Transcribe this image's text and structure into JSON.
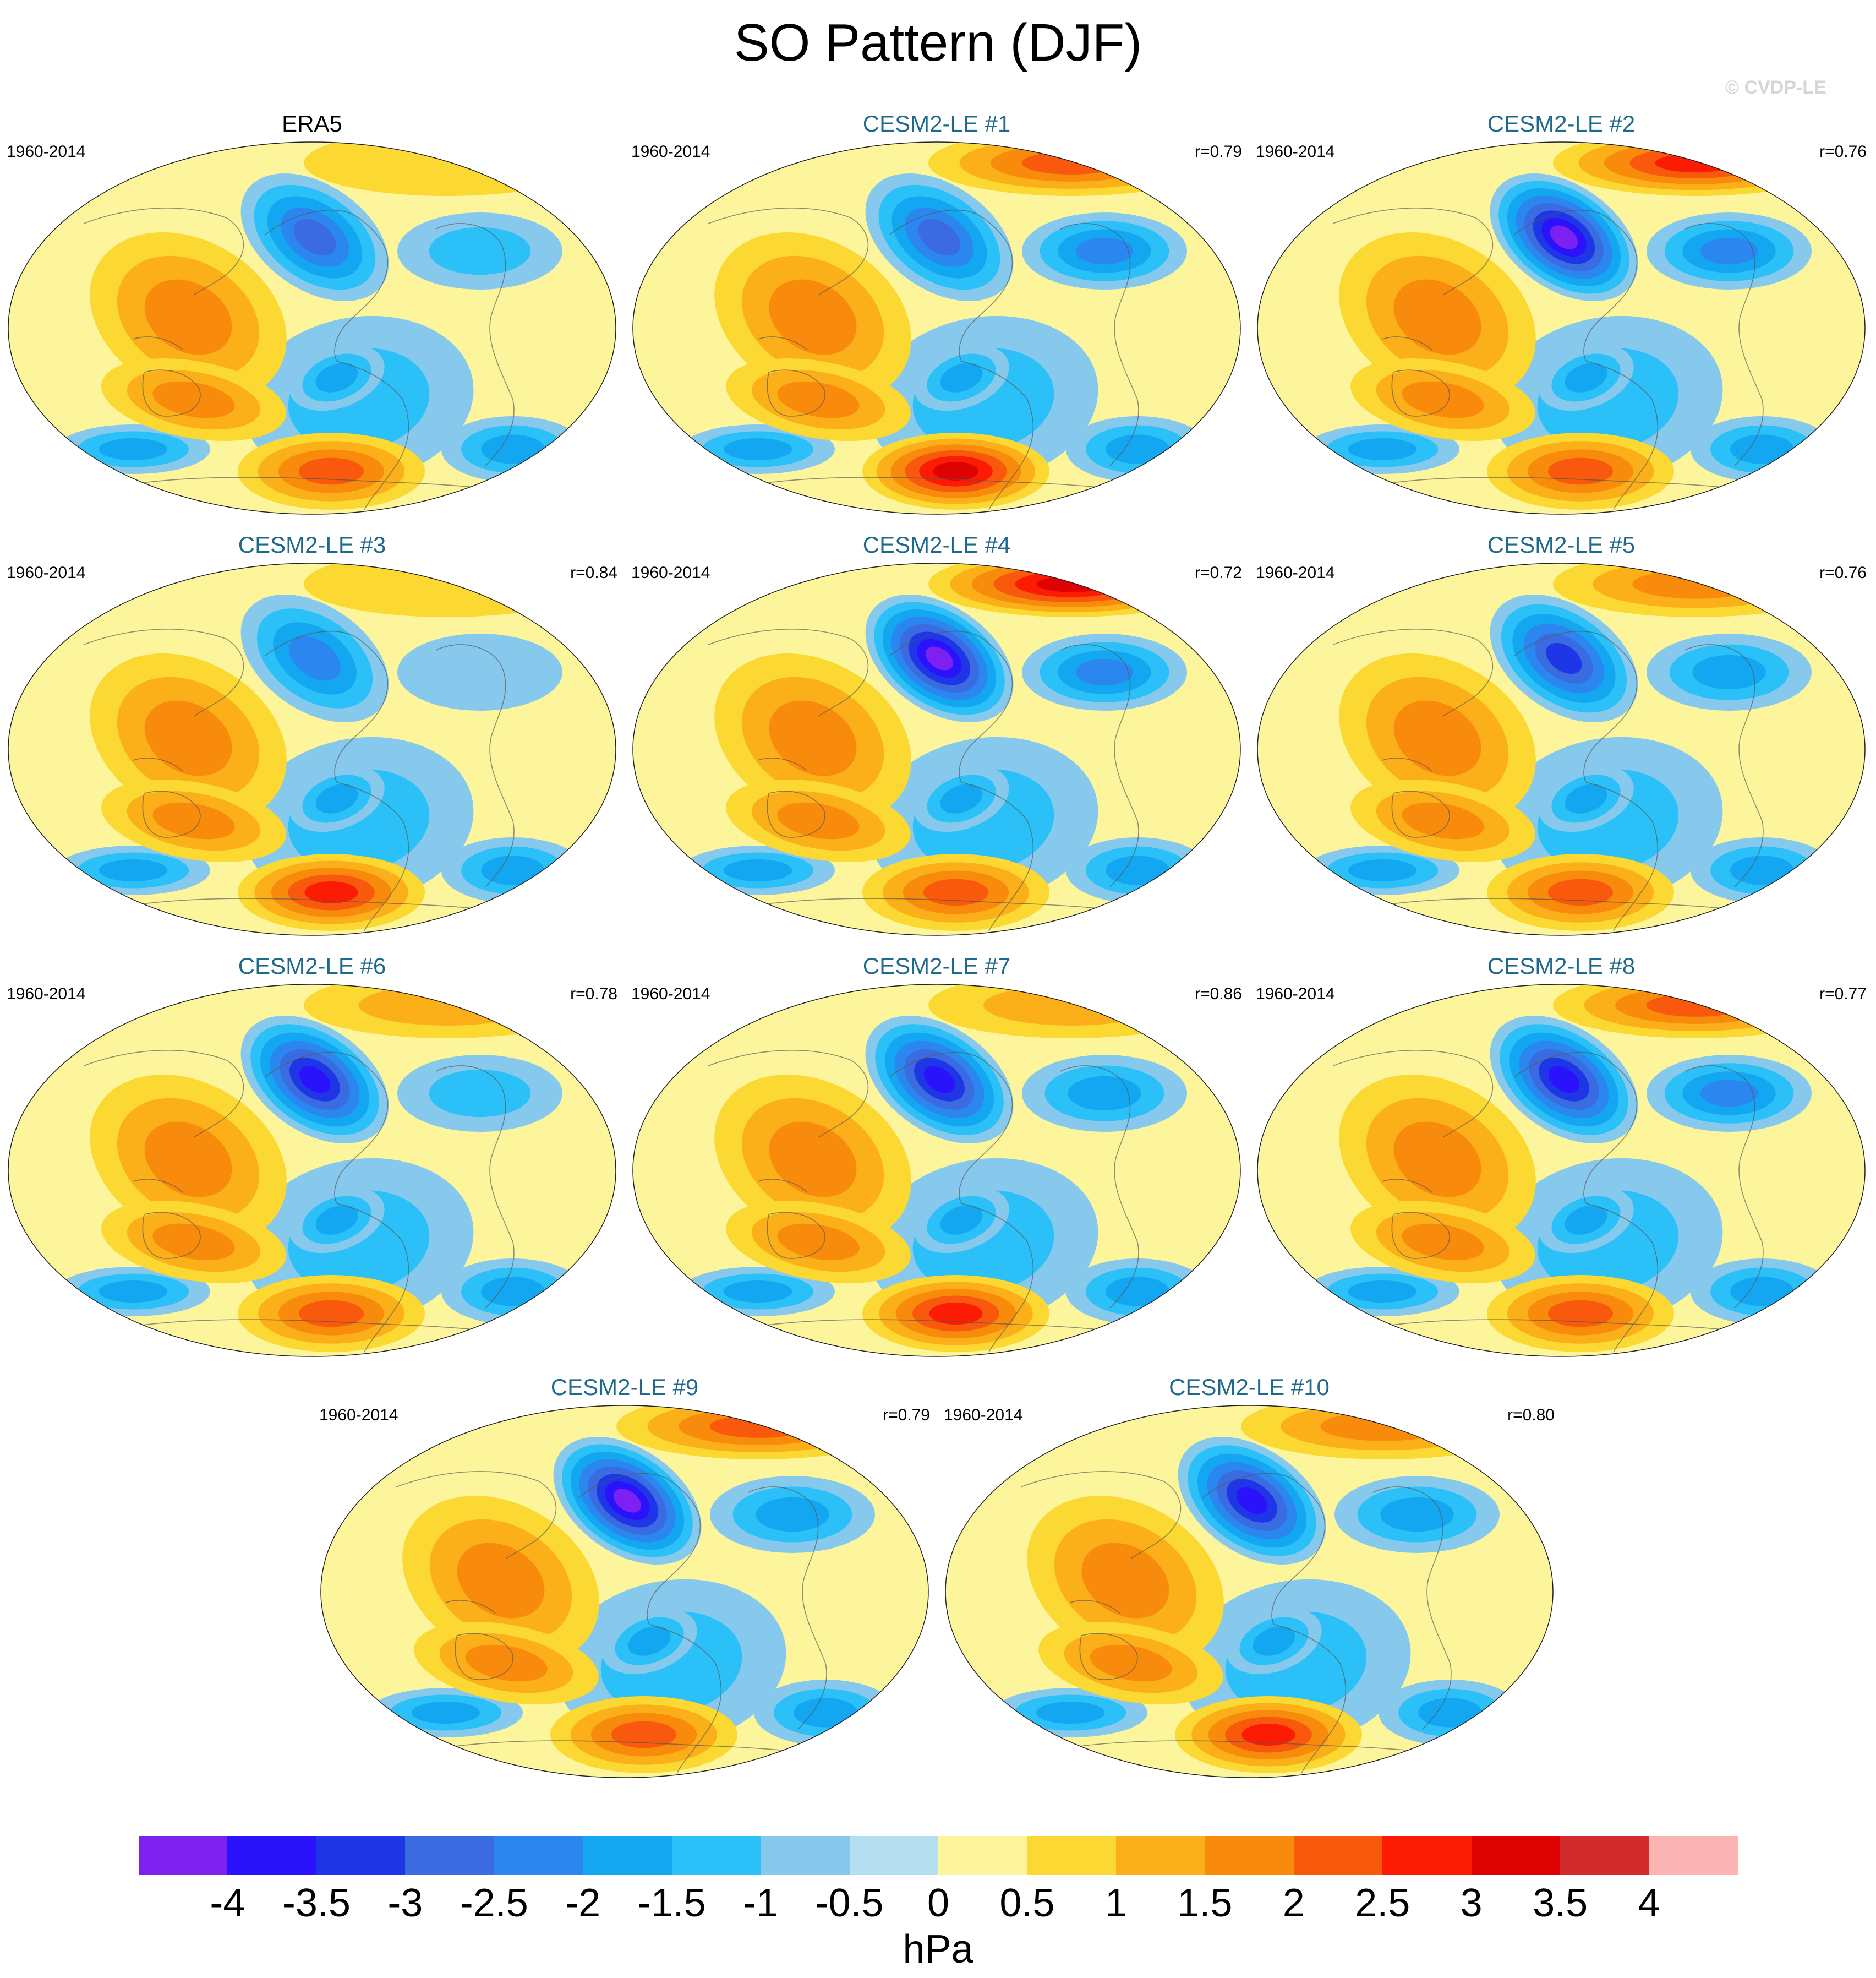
{
  "title": "SO Pattern (DJF)",
  "watermark": "© CVDP-LE",
  "colors": {
    "model_title": "#1f6a8a",
    "palette": [
      "#7c21f0",
      "#2a13fb",
      "#1f36e6",
      "#3b6be0",
      "#2b86ef",
      "#13a7f2",
      "#2bc0f7",
      "#86c9ec",
      "#b6def1",
      "#fdf59b",
      "#fbd832",
      "#fbb01a",
      "#f98b0c",
      "#f9590c",
      "#fc1c04",
      "#df0202",
      "#d12b2b",
      "#fbb4b4"
    ]
  },
  "colorbar": {
    "ticks": [
      "-4",
      "-3.5",
      "-3",
      "-2.5",
      "-2",
      "-1.5",
      "-1",
      "-0.5",
      "0",
      "0.5",
      "1",
      "1.5",
      "2",
      "2.5",
      "3",
      "3.5",
      "4"
    ],
    "units": "hPa"
  },
  "panels": [
    {
      "title": "ERA5",
      "period": "1960-2014",
      "r": "",
      "is_obs": true,
      "anomaly": {
        "north_pacific_low": -2.5,
        "south_pacific_high": 2.0,
        "north_atlantic_low": -1.0,
        "arctic_high": 0.5
      }
    },
    {
      "title": "CESM2-LE #1",
      "period": "1960-2014",
      "r": "r=0.79",
      "is_obs": false,
      "anomaly": {
        "north_pacific_low": -2.5,
        "south_pacific_high": 3.0,
        "north_atlantic_low": -2.0,
        "arctic_high": 2.0
      }
    },
    {
      "title": "CESM2-LE #2",
      "period": "1960-2014",
      "r": "r=0.76",
      "is_obs": false,
      "anomaly": {
        "north_pacific_low": -4.0,
        "south_pacific_high": 2.0,
        "north_atlantic_low": -2.0,
        "arctic_high": 2.5
      }
    },
    {
      "title": "CESM2-LE #3",
      "period": "1960-2014",
      "r": "r=0.84",
      "is_obs": false,
      "anomaly": {
        "north_pacific_low": -2.0,
        "south_pacific_high": 2.5,
        "north_atlantic_low": -0.5,
        "arctic_high": 0.5
      }
    },
    {
      "title": "CESM2-LE #4",
      "period": "1960-2014",
      "r": "r=0.72",
      "is_obs": false,
      "anomaly": {
        "north_pacific_low": -4.0,
        "south_pacific_high": 2.0,
        "north_atlantic_low": -2.0,
        "arctic_high": 3.0
      }
    },
    {
      "title": "CESM2-LE #5",
      "period": "1960-2014",
      "r": "r=0.76",
      "is_obs": false,
      "anomaly": {
        "north_pacific_low": -3.0,
        "south_pacific_high": 2.0,
        "north_atlantic_low": -1.5,
        "arctic_high": 1.5
      }
    },
    {
      "title": "CESM2-LE #6",
      "period": "1960-2014",
      "r": "r=0.78",
      "is_obs": false,
      "anomaly": {
        "north_pacific_low": -3.5,
        "south_pacific_high": 2.0,
        "north_atlantic_low": -1.0,
        "arctic_high": 1.0
      }
    },
    {
      "title": "CESM2-LE #7",
      "period": "1960-2014",
      "r": "r=0.86",
      "is_obs": false,
      "anomaly": {
        "north_pacific_low": -3.5,
        "south_pacific_high": 2.5,
        "north_atlantic_low": -1.5,
        "arctic_high": 1.0
      }
    },
    {
      "title": "CESM2-LE #8",
      "period": "1960-2014",
      "r": "r=0.77",
      "is_obs": false,
      "anomaly": {
        "north_pacific_low": -3.5,
        "south_pacific_high": 2.0,
        "north_atlantic_low": -2.0,
        "arctic_high": 2.0
      }
    },
    {
      "title": "CESM2-LE #9",
      "period": "1960-2014",
      "r": "r=0.79",
      "is_obs": false,
      "anomaly": {
        "north_pacific_low": -4.0,
        "south_pacific_high": 2.0,
        "north_atlantic_low": -1.5,
        "arctic_high": 2.0
      }
    },
    {
      "title": "CESM2-LE #10",
      "period": "1960-2014",
      "r": "r=0.80",
      "is_obs": false,
      "anomaly": {
        "north_pacific_low": -3.5,
        "south_pacific_high": 2.5,
        "north_atlantic_low": -1.5,
        "arctic_high": 1.5
      }
    }
  ]
}
